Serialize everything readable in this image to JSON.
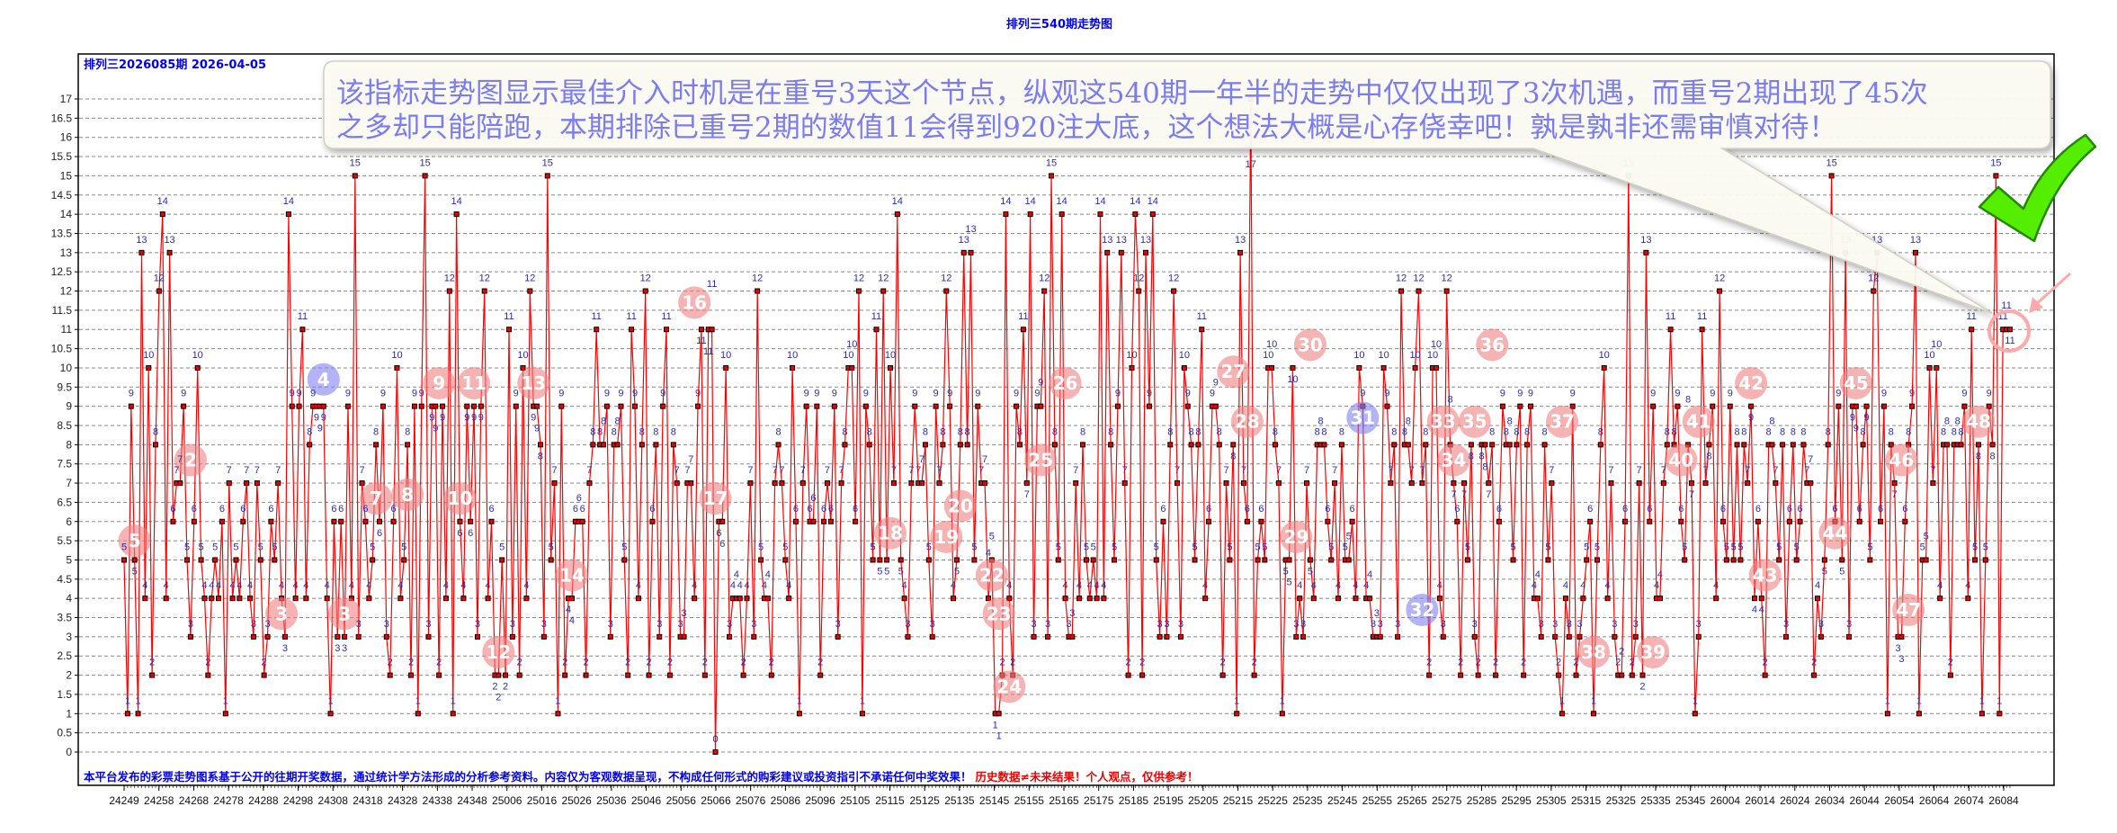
{
  "chart_data": {
    "type": "line",
    "title": "排列三540期走势图",
    "subtitle": "排列三2026085期  2026-04-05",
    "ylim": [
      0,
      17
    ],
    "y_ticks": [
      "0",
      "0.5",
      "1",
      "1.5",
      "2",
      "2.5",
      "3",
      "3.5",
      "4",
      "4.5",
      "5",
      "5.5",
      "6",
      "6.5",
      "7",
      "7.5",
      "8",
      "8.5",
      "9",
      "9.5",
      "10",
      "10.5",
      "11",
      "11.5",
      "12",
      "12.5",
      "13",
      "13.5",
      "14",
      "14.5",
      "15",
      "15.5",
      "16",
      "16.5",
      "17"
    ],
    "x_tick_labels": [
      "24249",
      "24258",
      "24268",
      "24278",
      "24288",
      "24298",
      "24308",
      "24318",
      "24328",
      "24338",
      "24348",
      "25006",
      "25016",
      "25026",
      "25036",
      "25046",
      "25056",
      "25066",
      "25076",
      "25086",
      "25096",
      "25105",
      "25115",
      "25125",
      "25135",
      "25145",
      "25155",
      "25165",
      "25175",
      "25185",
      "25195",
      "25205",
      "25215",
      "25225",
      "25235",
      "25245",
      "25255",
      "25265",
      "25275",
      "25285",
      "25295",
      "25305",
      "25315",
      "25325",
      "25335",
      "25345",
      "26004",
      "26014",
      "26024",
      "26034",
      "26044",
      "26054",
      "26064",
      "26074",
      "26084"
    ],
    "grid": true,
    "point_labels": true,
    "colors": {
      "line": "#ff0000",
      "marker": "#ee0000",
      "label": "#2b2bb0",
      "badge_pink": "#f08080",
      "badge_blue": "#8080f0"
    },
    "values": [
      5,
      1,
      9,
      5,
      1,
      13,
      4,
      10,
      2,
      8,
      12,
      14,
      4,
      13,
      6,
      7,
      7,
      9,
      5,
      3,
      6,
      10,
      5,
      4,
      2,
      4,
      5,
      4,
      6,
      1,
      7,
      4,
      5,
      4,
      6,
      7,
      4,
      3,
      7,
      5,
      2,
      3,
      6,
      5,
      7,
      4,
      3,
      14,
      9,
      4,
      9,
      11,
      4,
      8,
      9,
      9,
      9,
      9,
      4,
      1,
      6,
      3,
      6,
      3,
      9,
      4,
      15,
      3,
      7,
      6,
      4,
      5,
      8,
      6,
      9,
      3,
      2,
      6,
      10,
      4,
      5,
      8,
      2,
      9,
      1,
      9,
      15,
      3,
      9,
      9,
      2,
      9,
      4,
      12,
      1,
      14,
      6,
      4,
      9,
      6,
      9,
      3,
      9,
      12,
      4,
      6,
      2,
      2,
      5,
      2,
      11,
      3,
      9,
      2,
      10,
      4,
      12,
      9,
      9,
      8,
      3,
      15,
      5,
      7,
      1,
      9,
      2,
      4,
      4,
      6,
      6,
      6,
      2,
      7,
      8,
      11,
      8,
      8,
      9,
      3,
      8,
      8,
      9,
      5,
      2,
      11,
      9,
      4,
      8,
      12,
      2,
      6,
      8,
      3,
      9,
      11,
      2,
      8,
      7,
      3,
      3,
      7,
      7,
      4,
      9,
      11,
      2,
      11,
      11,
      0,
      6,
      6,
      10,
      3,
      4,
      4,
      4,
      2,
      4,
      7,
      3,
      12,
      5,
      4,
      4,
      2,
      7,
      8,
      7,
      5,
      4,
      10,
      6,
      1,
      7,
      9,
      6,
      6,
      9,
      2,
      6,
      7,
      6,
      9,
      3,
      7,
      8,
      10,
      10,
      6,
      12,
      1,
      9,
      8,
      5,
      11,
      5,
      12,
      5,
      10,
      7,
      14,
      5,
      4,
      3,
      7,
      9,
      7,
      7,
      8,
      5,
      3,
      9,
      7,
      8,
      12,
      9,
      4,
      5,
      8,
      13,
      8,
      13,
      5,
      9,
      7,
      7,
      4,
      5,
      1,
      1,
      2,
      14,
      4,
      2,
      9,
      8,
      11,
      7,
      14,
      3,
      9,
      9,
      12,
      3,
      15,
      8,
      5,
      14,
      4,
      3,
      3,
      7,
      4,
      8,
      5,
      4,
      5,
      4,
      14,
      4,
      13,
      8,
      5,
      9,
      13,
      7,
      2,
      10,
      14,
      12,
      2,
      13,
      9,
      14,
      5,
      3,
      6,
      3,
      8,
      12,
      7,
      3,
      10,
      9,
      8,
      5,
      8,
      11,
      4,
      6,
      9,
      9,
      8,
      2,
      7,
      5,
      8,
      1,
      13,
      7,
      6,
      17,
      2,
      5,
      6,
      5,
      10,
      10,
      8,
      7,
      1,
      5,
      5,
      10,
      3,
      4,
      3,
      7,
      5,
      4,
      8,
      8,
      8,
      6,
      5,
      7,
      4,
      8,
      5,
      5,
      6,
      4,
      10,
      9,
      4,
      4,
      3,
      3,
      3,
      10,
      9,
      7,
      8,
      3,
      12,
      8,
      8,
      7,
      10,
      12,
      7,
      8,
      2,
      10,
      10,
      4,
      3,
      12,
      8,
      7,
      6,
      2,
      7,
      5,
      8,
      3,
      2,
      8,
      8,
      7,
      8,
      2,
      6,
      9,
      8,
      8,
      5,
      8,
      9,
      2,
      8,
      9,
      4,
      4,
      3,
      8,
      5,
      7,
      3,
      2,
      1,
      4,
      3,
      9,
      2,
      3,
      4,
      5,
      6,
      1,
      5,
      8,
      10,
      4,
      7,
      3,
      2,
      2,
      6,
      15,
      2,
      3,
      7,
      2,
      13,
      6,
      9,
      4,
      4,
      7,
      8,
      11,
      8,
      9,
      6,
      5,
      8,
      7,
      1,
      3,
      11,
      7,
      8,
      9,
      4,
      12,
      6,
      5,
      9,
      5,
      8,
      5,
      8,
      7,
      9,
      4,
      6,
      4,
      2,
      8,
      8,
      7,
      5,
      8,
      3,
      6,
      8,
      5,
      6,
      8,
      7,
      7,
      2,
      4,
      3,
      5,
      8,
      15,
      6,
      9,
      5,
      13,
      3,
      9,
      9,
      6,
      8,
      9,
      5,
      12,
      13,
      6,
      9,
      1,
      8,
      7,
      3,
      3,
      6,
      8,
      9,
      13,
      1,
      5,
      5,
      10,
      7,
      10,
      4,
      8,
      8,
      2,
      8,
      8,
      8,
      9,
      4,
      11,
      5,
      8,
      1,
      5,
      9,
      8,
      15,
      1,
      11,
      11,
      11
    ],
    "badges": [
      {
        "index": 3,
        "y": 5.5,
        "label": "5",
        "color": "pink"
      },
      {
        "index": 19,
        "y": 7.6,
        "label": "2",
        "color": "pink"
      },
      {
        "index": 45,
        "y": 3.6,
        "label": "3",
        "color": "pink"
      },
      {
        "index": 57,
        "y": 9.7,
        "label": "4",
        "color": "blue"
      },
      {
        "index": 63,
        "y": 3.6,
        "label": "3",
        "color": "pink"
      },
      {
        "index": 72,
        "y": 6.6,
        "label": "7",
        "color": "pink"
      },
      {
        "index": 81,
        "y": 6.7,
        "label": "8",
        "color": "pink"
      },
      {
        "index": 90,
        "y": 9.6,
        "label": "9",
        "color": "pink"
      },
      {
        "index": 96,
        "y": 6.6,
        "label": "10",
        "color": "pink"
      },
      {
        "index": 100,
        "y": 9.6,
        "label": "11",
        "color": "pink"
      },
      {
        "index": 107,
        "y": 2.6,
        "label": "12",
        "color": "pink"
      },
      {
        "index": 117,
        "y": 9.6,
        "label": "13",
        "color": "pink"
      },
      {
        "index": 128,
        "y": 4.6,
        "label": "14",
        "color": "pink"
      },
      {
        "index": 163,
        "y": 11.7,
        "label": "16",
        "color": "pink"
      },
      {
        "index": 169,
        "y": 6.6,
        "label": "17",
        "color": "pink"
      },
      {
        "index": 219,
        "y": 5.7,
        "label": "18",
        "color": "pink"
      },
      {
        "index": 235,
        "y": 5.6,
        "label": "19",
        "color": "pink"
      },
      {
        "index": 239,
        "y": 6.4,
        "label": "20",
        "color": "pink"
      },
      {
        "index": 248,
        "y": 4.6,
        "label": "22",
        "color": "pink"
      },
      {
        "index": 250,
        "y": 3.6,
        "label": "23",
        "color": "pink"
      },
      {
        "index": 253,
        "y": 1.7,
        "label": "24",
        "color": "pink"
      },
      {
        "index": 262,
        "y": 7.6,
        "label": "25",
        "color": "pink"
      },
      {
        "index": 269,
        "y": 9.6,
        "label": "26",
        "color": "pink"
      },
      {
        "index": 317,
        "y": 9.9,
        "label": "27",
        "color": "pink"
      },
      {
        "index": 321,
        "y": 8.6,
        "label": "28",
        "color": "pink"
      },
      {
        "index": 335,
        "y": 5.6,
        "label": "29",
        "color": "pink"
      },
      {
        "index": 339,
        "y": 10.6,
        "label": "30",
        "color": "pink"
      },
      {
        "index": 354,
        "y": 8.7,
        "label": "31",
        "color": "blue"
      },
      {
        "index": 371,
        "y": 3.7,
        "label": "32",
        "color": "blue"
      },
      {
        "index": 377,
        "y": 8.6,
        "label": "33",
        "color": "pink"
      },
      {
        "index": 380,
        "y": 7.6,
        "label": "34",
        "color": "pink"
      },
      {
        "index": 386,
        "y": 8.6,
        "label": "35",
        "color": "pink"
      },
      {
        "index": 391,
        "y": 10.6,
        "label": "36",
        "color": "pink"
      },
      {
        "index": 411,
        "y": 8.6,
        "label": "37",
        "color": "pink"
      },
      {
        "index": 420,
        "y": 2.6,
        "label": "38",
        "color": "pink"
      },
      {
        "index": 437,
        "y": 2.6,
        "label": "39",
        "color": "pink"
      },
      {
        "index": 445,
        "y": 7.6,
        "label": "40",
        "color": "pink"
      },
      {
        "index": 450,
        "y": 8.6,
        "label": "41",
        "color": "pink"
      },
      {
        "index": 465,
        "y": 9.6,
        "label": "42",
        "color": "pink"
      },
      {
        "index": 469,
        "y": 4.6,
        "label": "43",
        "color": "pink"
      },
      {
        "index": 489,
        "y": 5.7,
        "label": "44",
        "color": "pink"
      },
      {
        "index": 495,
        "y": 9.6,
        "label": "45",
        "color": "pink"
      },
      {
        "index": 508,
        "y": 7.6,
        "label": "46",
        "color": "pink"
      },
      {
        "index": 510,
        "y": 3.7,
        "label": "47",
        "color": "pink"
      },
      {
        "index": 530,
        "y": 8.6,
        "label": "48",
        "color": "pink"
      }
    ]
  },
  "callout": {
    "line1": "该指标走势图显示最佳介入时机是在重号3天这个节点，纵观这540期一年半的走势中仅仅出现了3次机遇，而重号2期出现了45次",
    "line2": "之多却只能陪跑，本期排除已重号2期的数值11会得到920注大底，这个想法大概是心存侥幸吧！孰是孰非还需审慎对待！"
  },
  "footer": {
    "disclaimer_blue": "本平台发布的彩票走势图系基于公开的往期开奖数据，通过统计学方法形成的分析参考资料。内容仅为客观数据呈现，不构成任何形式的购彩建议或投资指引不承诺任何中奖效果！",
    "disclaimer_red": "历史数据≠未来结果！个人观点，仅供参考！"
  },
  "icons": {
    "checkmark": "green-check-icon",
    "highlight": "red-circle-highlight",
    "arrow": "pink-arrow-icon"
  }
}
